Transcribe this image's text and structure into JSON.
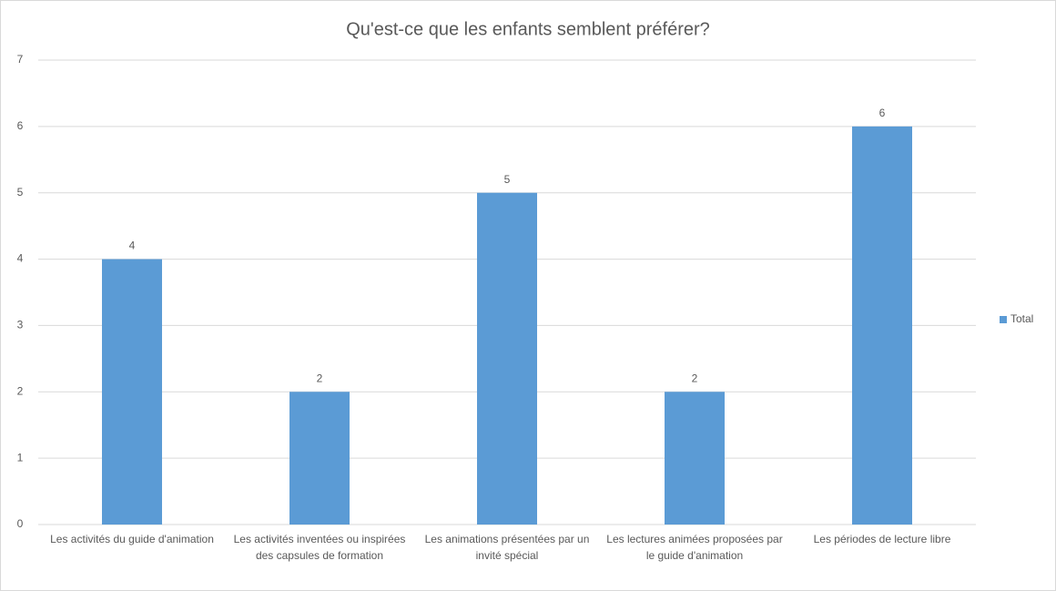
{
  "chart_data": {
    "type": "bar",
    "title": "Qu'est-ce que les enfants semblent préférer?",
    "categories": [
      "Les activités du guide d'animation",
      "Les activités inventées ou inspirées des capsules de formation",
      "Les animations présentées par un invité spécial",
      "Les lectures animées proposées par le guide d'animation",
      "Les périodes de lecture libre"
    ],
    "series": [
      {
        "name": "Total",
        "color": "#5b9bd5",
        "values": [
          4,
          2,
          5,
          2,
          6
        ]
      }
    ],
    "ylim": [
      0,
      7
    ],
    "yticks": [
      0,
      1,
      2,
      3,
      4,
      5,
      6,
      7
    ],
    "grid": true,
    "data_labels": true,
    "legend": "right"
  }
}
